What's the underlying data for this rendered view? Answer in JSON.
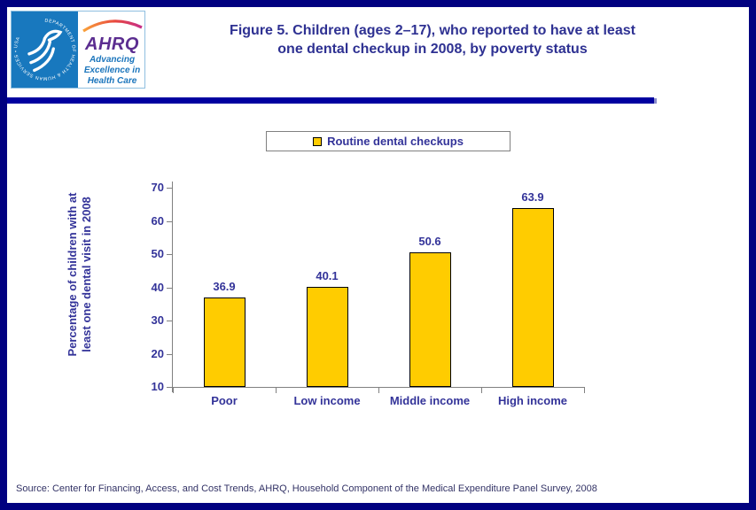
{
  "header": {
    "logo": {
      "acronym": "AHRQ",
      "tagline_lines": [
        "Advancing",
        "Excellence in",
        "Health Care"
      ],
      "seal_text": "DEPARTMENT OF HEALTH & HUMAN SERVICES • USA"
    },
    "title_line1": "Figure 5. Children (ages 2–17), who reported to have at least",
    "title_line2": "one dental checkup in 2008, by poverty status"
  },
  "chart_data": {
    "type": "bar",
    "title": "Figure 5. Children (ages 2–17), who reported to have at least one dental checkup in 2008, by poverty status",
    "categories": [
      "Poor",
      "Low income",
      "Middle income",
      "High income"
    ],
    "values": [
      36.9,
      40.1,
      50.6,
      63.9
    ],
    "series": [
      {
        "name": "Routine dental checkups",
        "values": [
          36.9,
          40.1,
          50.6,
          63.9
        ]
      }
    ],
    "legend_label": "Routine dental checkups",
    "legend_position": "top-center",
    "xlabel": "",
    "ylabel": "Percentage of children with at least one dental visit in 2008",
    "ylabel_lines": [
      "Percentage of children with at",
      "least one dental visit in 2008"
    ],
    "ylim": [
      10,
      70
    ],
    "yticks": [
      10,
      20,
      30,
      40,
      50,
      60,
      70
    ],
    "grid": false,
    "value_labels_shown": true
  },
  "footer": {
    "source": "Source: Center for Financing, Access, and Cost Trends, AHRQ, Household Component of the Medical Expenditure Panel Survey, 2008"
  },
  "colors": {
    "frame-navy": "#000080",
    "divider-blue": "#0000A0",
    "title-blue": "#2E3192",
    "label-blue": "#333399",
    "source-blue": "#333366",
    "bar-fill": "#FFCC00",
    "bar-border": "#000000",
    "axis-gray": "#808080",
    "legend-border": "#808080",
    "hhs-blue": "#1878BE",
    "ahrq-purple": "#5B2D90",
    "tagline-blue": "#1B75BC"
  },
  "icons": {
    "hhs-eagle": "hhs-eagle-icon",
    "rainbow-arc": "rainbow-arc-icon"
  }
}
